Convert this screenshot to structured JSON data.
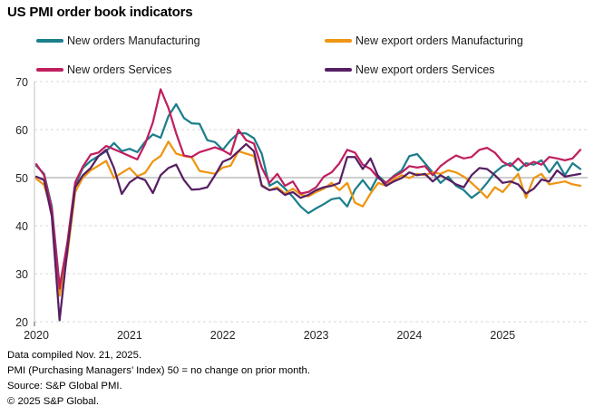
{
  "title": "US PMI order book indicators",
  "footer": {
    "lines": [
      "Data compiled Nov. 21, 2025.",
      "PMI (Purchasing Managers’ Index) 50 = no change on prior month.",
      "Source: S&P Global PMI.",
      "© 2025 S&P Global."
    ]
  },
  "chart_data": {
    "type": "line",
    "title": "US PMI order book indicators",
    "x_unit": "month",
    "x_range": [
      "2020-01",
      "2025-11"
    ],
    "ylim": [
      20,
      70
    ],
    "y_ticks": [
      70,
      60,
      50,
      40,
      30,
      20
    ],
    "x_ticks": [
      "2020",
      "2021",
      "2022",
      "2023",
      "2024",
      "2025"
    ],
    "reference_line": 50,
    "grid": "horizontal-dashed",
    "legend_position": "top",
    "colors": {
      "grid_dashed": "#d9d9d9",
      "grid_solid_50": "#b0b0b0",
      "axis": "#cccccc"
    },
    "series": [
      {
        "id": "new-orders-manufacturing",
        "name": "New orders Manufacturing",
        "color": "#1B7E8C",
        "values": [
          52.5,
          50.8,
          44.0,
          27.5,
          36.0,
          48.5,
          52.0,
          53.5,
          54.5,
          55.5,
          57.2,
          55.5,
          56.0,
          55.3,
          57.5,
          59.0,
          58.3,
          62.8,
          65.3,
          62.4,
          61.3,
          61.2,
          57.8,
          57.4,
          55.8,
          57.8,
          59.3,
          59.2,
          58.2,
          55.0,
          48.3,
          49.2,
          47.7,
          46.0,
          44.0,
          42.6,
          43.6,
          44.5,
          45.5,
          45.8,
          44.0,
          47.5,
          49.5,
          47.4,
          50.4,
          48.9,
          50.4,
          51.5,
          54.5,
          54.9,
          53.0,
          51.1,
          48.9,
          50.2,
          48.3,
          47.4,
          45.8,
          47.0,
          48.9,
          51.1,
          52.4,
          53.0,
          51.5,
          53.0,
          52.7,
          53.6,
          51.1,
          53.3,
          50.5,
          53.0,
          51.8
        ]
      },
      {
        "id": "new-export-orders-manufacturing",
        "name": "New export orders Manufacturing",
        "color": "#EE9512",
        "values": [
          49.8,
          48.5,
          43.0,
          25.4,
          34.0,
          47.0,
          50.0,
          51.5,
          52.5,
          53.5,
          49.9,
          51.0,
          52.0,
          50.3,
          51.0,
          53.4,
          54.5,
          57.5,
          55.0,
          54.5,
          54.2,
          51.4,
          51.1,
          50.8,
          52.1,
          52.5,
          55.5,
          55.0,
          54.5,
          48.5,
          47.4,
          48.0,
          46.7,
          47.7,
          46.5,
          46.1,
          47.0,
          47.7,
          48.9,
          47.4,
          48.9,
          44.8,
          44.0,
          46.7,
          48.9,
          48.3,
          49.6,
          50.5,
          49.9,
          50.8,
          50.5,
          51.1,
          50.8,
          51.5,
          51.1,
          50.2,
          48.9,
          47.4,
          45.8,
          48.0,
          47.0,
          48.9,
          50.8,
          45.8,
          49.9,
          50.8,
          48.6,
          48.9,
          49.2,
          48.6,
          48.3
        ]
      },
      {
        "id": "new-orders-services",
        "name": "New orders Services",
        "color": "#C01F5F",
        "values": [
          52.8,
          50.5,
          43.5,
          26.9,
          36.5,
          49.0,
          52.3,
          54.8,
          55.2,
          56.6,
          55.9,
          55.2,
          54.5,
          53.8,
          57.0,
          61.5,
          68.4,
          64.5,
          59.2,
          54.6,
          54.3,
          55.3,
          55.8,
          56.3,
          55.7,
          54.8,
          60.0,
          57.8,
          57.1,
          52.1,
          48.9,
          50.8,
          48.3,
          49.2,
          46.7,
          47.0,
          48.0,
          50.2,
          51.1,
          53.0,
          55.8,
          55.2,
          52.7,
          51.8,
          49.9,
          48.9,
          50.2,
          51.1,
          52.4,
          52.1,
          52.4,
          50.5,
          52.4,
          53.6,
          54.6,
          54.0,
          54.3,
          55.8,
          56.2,
          55.2,
          53.3,
          52.4,
          54.0,
          52.4,
          53.3,
          52.7,
          54.3,
          54.0,
          53.6,
          54.0,
          55.8
        ]
      },
      {
        "id": "new-export-orders-services",
        "name": "New export orders Services",
        "color": "#571F63",
        "values": [
          50.2,
          49.5,
          42.0,
          20.3,
          35.0,
          48.0,
          50.5,
          52.0,
          54.5,
          55.8,
          52.0,
          46.6,
          49.0,
          50.1,
          49.5,
          46.8,
          50.5,
          52.0,
          52.7,
          49.5,
          47.5,
          47.6,
          48.0,
          50.5,
          53.3,
          54.0,
          55.5,
          57.0,
          55.5,
          48.3,
          47.4,
          47.7,
          46.4,
          47.0,
          45.8,
          46.4,
          47.4,
          48.0,
          48.3,
          48.9,
          54.3,
          54.3,
          51.8,
          54.0,
          50.2,
          48.3,
          49.2,
          49.9,
          51.1,
          50.5,
          50.8,
          49.2,
          50.5,
          49.6,
          48.6,
          48.0,
          50.5,
          52.0,
          51.8,
          50.5,
          48.9,
          49.2,
          48.6,
          46.7,
          47.7,
          49.6,
          49.2,
          51.5,
          50.2,
          50.5,
          50.8
        ]
      }
    ]
  }
}
